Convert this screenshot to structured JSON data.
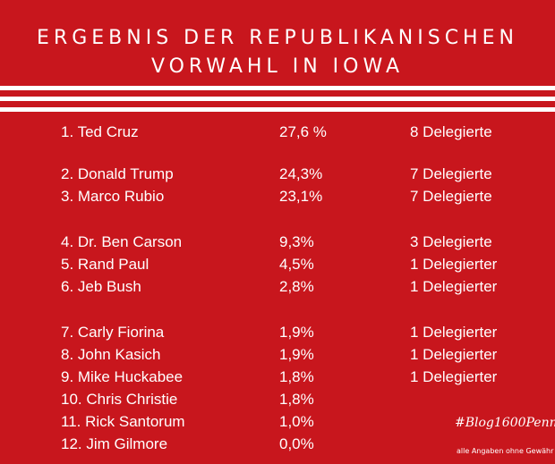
{
  "header": {
    "line1": "ERGEBNIS DER REPUBLIKANISCHEN",
    "line2": "VORWAHL IN IOWA"
  },
  "results": [
    {
      "name": "1.  Ted Cruz",
      "percent": "27,6 %",
      "delegates": "8 Delegierte"
    },
    {
      "name": "2.  Donald Trump",
      "percent": "24,3%",
      "delegates": "7 Delegierte"
    },
    {
      "name": "3.  Marco Rubio",
      "percent": "23,1%",
      "delegates": "7 Delegierte"
    },
    {
      "name": "4.  Dr. Ben Carson",
      "percent": "9,3%",
      "delegates": "3 Delegierte"
    },
    {
      "name": "5.  Rand Paul",
      "percent": "4,5%",
      "delegates": "1 Delegierter"
    },
    {
      "name": "6.  Jeb Bush",
      "percent": "2,8%",
      "delegates": "1 Delegierter"
    },
    {
      "name": "7.  Carly Fiorina",
      "percent": "1,9%",
      "delegates": "1 Delegierter"
    },
    {
      "name": "8.  John Kasich",
      "percent": "1,9%",
      "delegates": "1 Delegierter"
    },
    {
      "name": "9.  Mike Huckabee",
      "percent": "1,8%",
      "delegates": "1 Delegierter"
    },
    {
      "name": "10. Chris Christie",
      "percent": "1,8%",
      "delegates": ""
    },
    {
      "name": "11.  Rick Santorum",
      "percent": "1,0%",
      "delegates": ""
    },
    {
      "name": "12.  Jim Gilmore",
      "percent": "0,0%",
      "delegates": ""
    }
  ],
  "footer": {
    "hashtag": "#Blog1600Penn",
    "note": "alle Angaben ohne Gewähr"
  },
  "colors": {
    "background": "#c8161d",
    "text": "#ffffff"
  }
}
